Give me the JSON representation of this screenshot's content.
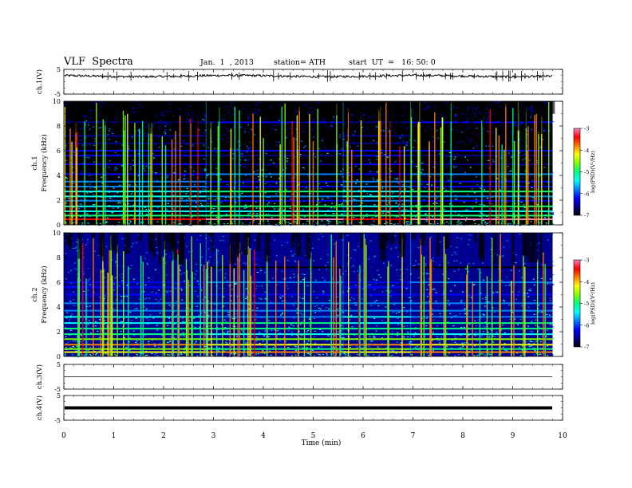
{
  "header": {
    "title": "VLF  Spectra",
    "date": "Jan.  1  , 2013",
    "station": "station= ATH",
    "start_ut": "start  UT  =   16: 50: 0"
  },
  "colors": {
    "cmap": [
      "#000000",
      "#00008c",
      "#0000ff",
      "#0080ff",
      "#00ffff",
      "#00ff80",
      "#80ff00",
      "#ffff00",
      "#ff8000",
      "#ff0000",
      "#ff80c0",
      "#ffffff"
    ]
  },
  "chart_data": [
    {
      "type": "line",
      "panel": "ch1-waveform",
      "ylabel": "ch.1(V)",
      "ylim": [
        -5,
        5
      ],
      "yticks": [
        "5",
        "-5"
      ],
      "series": [
        {
          "x": [
            0,
            9.8
          ],
          "y": [
            2.3,
            2.3
          ]
        }
      ]
    },
    {
      "type": "heatmap",
      "panel": "ch1-spectrogram",
      "ylabel_top": "ch.1",
      "ylabel": "Frequency  (kHz)",
      "ylim": [
        0,
        10
      ],
      "yticks": [
        "0",
        "2",
        "4",
        "6",
        "8",
        "10"
      ],
      "xlim": [
        0,
        10
      ],
      "data_end": 9.8,
      "colorbar": {
        "label": "log(PSD)(V²/Hz)",
        "range": [
          -7,
          -3
        ],
        "ticks": [
          "-3",
          "-4",
          "-5",
          "-6",
          "-7"
        ]
      },
      "base_logpsd": -6.8,
      "bands": [
        {
          "f": 0.45,
          "v": -3.6
        },
        {
          "f": 0.75,
          "v": -4.9
        },
        {
          "f": 1.1,
          "v": -5.2
        },
        {
          "f": 1.5,
          "v": -5.4
        },
        {
          "f": 1.95,
          "v": -5.7
        },
        {
          "f": 2.3,
          "v": -5.5
        },
        {
          "f": 2.7,
          "v": -5.4
        },
        {
          "f": 3.1,
          "v": -5.8
        },
        {
          "f": 3.5,
          "v": -5.9
        },
        {
          "f": 4.1,
          "v": -6.0
        },
        {
          "f": 4.9,
          "v": -6.1
        },
        {
          "f": 5.6,
          "v": -6.2
        },
        {
          "f": 6.0,
          "v": -6.2
        },
        {
          "f": 6.6,
          "v": -6.4
        },
        {
          "f": 7.2,
          "v": -6.4
        },
        {
          "f": 8.3,
          "v": -6.5
        }
      ],
      "segment_breaks": [
        2.85,
        5.6,
        6.95
      ]
    },
    {
      "type": "heatmap",
      "panel": "ch2-spectrogram",
      "ylabel_top": "ch.2",
      "ylabel": "Frequency  (kHz)",
      "ylim": [
        0,
        10
      ],
      "yticks": [
        "0",
        "2",
        "4",
        "6",
        "8",
        "10"
      ],
      "xlim": [
        0,
        10
      ],
      "data_end": 9.8,
      "colorbar": {
        "label": "log(PSD)(V²/Hz)",
        "range": [
          -7,
          -3
        ],
        "ticks": [
          "-3",
          "-4",
          "-5",
          "-6",
          "-7"
        ]
      },
      "base_logpsd": -6.6,
      "bands": [
        {
          "f": 0.35,
          "v": -4.3
        },
        {
          "f": 0.6,
          "v": -4.7
        },
        {
          "f": 0.95,
          "v": -4.0
        },
        {
          "f": 1.4,
          "v": -4.8
        },
        {
          "f": 1.8,
          "v": -5.0
        },
        {
          "f": 2.25,
          "v": -4.9
        },
        {
          "f": 2.7,
          "v": -5.2
        },
        {
          "f": 3.2,
          "v": -5.5
        },
        {
          "f": 3.7,
          "v": -5.6
        },
        {
          "f": 4.3,
          "v": -5.9
        },
        {
          "f": 5.0,
          "v": -6.0
        },
        {
          "f": 5.6,
          "v": -6.1
        },
        {
          "f": 6.0,
          "v": -6.0
        },
        {
          "f": 6.5,
          "v": -6.3
        },
        {
          "f": 7.2,
          "v": -6.4
        }
      ],
      "segment_breaks": [
        2.85,
        5.6,
        6.95
      ]
    },
    {
      "type": "line",
      "panel": "ch3-waveform",
      "ylabel": "ch.3(V)",
      "ylim": [
        -5,
        5
      ],
      "yticks": [
        "5",
        "-5"
      ],
      "series": [
        {
          "x": [
            0,
            9.8
          ],
          "y": [
            0,
            0
          ]
        }
      ]
    },
    {
      "type": "line",
      "panel": "ch4-waveform",
      "ylabel": "ch.4(V)",
      "ylim": [
        -5,
        5
      ],
      "yticks": [
        "5",
        "-5"
      ],
      "xlabel": "Time  (min)",
      "xticks": [
        "0",
        "1",
        "2",
        "3",
        "4",
        "5",
        "6",
        "7",
        "8",
        "9",
        "10"
      ],
      "series": [
        {
          "x": [
            0,
            9.8
          ],
          "y": [
            0,
            0
          ]
        }
      ]
    }
  ]
}
